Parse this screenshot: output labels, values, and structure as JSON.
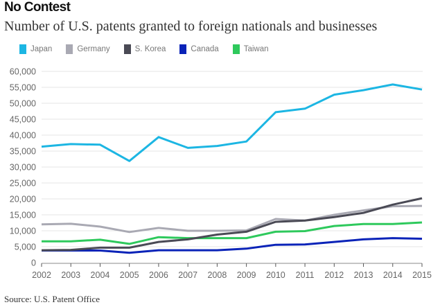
{
  "header": {
    "title": "No Contest",
    "subtitle": "Number of U.S. patents granted to foreign nationals and businesses"
  },
  "footer": {
    "source": "Source: U.S. Patent Office"
  },
  "chart_data": {
    "type": "line",
    "title": "No Contest",
    "subtitle": "Number of U.S. patents granted to foreign nationals and businesses",
    "xlabel": "",
    "ylabel": "",
    "x": [
      "2002",
      "2003",
      "2004",
      "2005",
      "2006",
      "2007",
      "2008",
      "2009",
      "2010",
      "2011",
      "2012",
      "2013",
      "2014",
      "2015"
    ],
    "ylim": [
      0,
      60000
    ],
    "yticks": [
      0,
      5000,
      10000,
      15000,
      20000,
      25000,
      30000,
      35000,
      40000,
      45000,
      50000,
      55000,
      60000
    ],
    "ytick_labels": [
      "0",
      "5,000",
      "10,000",
      "15,000",
      "20,000",
      "25,000",
      "30,000",
      "35,000",
      "40,000",
      "45,000",
      "50,000",
      "55,000",
      "60,000"
    ],
    "grid": true,
    "legend_position": "top-left",
    "series": [
      {
        "name": "Japan",
        "color": "#1cb6e3",
        "values": [
          36400,
          37200,
          37000,
          31900,
          39400,
          36000,
          36600,
          38000,
          47200,
          48300,
          52700,
          54100,
          55900,
          54300
        ]
      },
      {
        "name": "Germany",
        "color": "#a9a9b3",
        "values": [
          12000,
          12200,
          11300,
          9600,
          10900,
          10000,
          10000,
          10100,
          13700,
          13200,
          15000,
          16400,
          17700,
          17800
        ]
      },
      {
        "name": "S. Korea",
        "color": "#4a4a55",
        "values": [
          3900,
          4000,
          4700,
          4700,
          6500,
          7300,
          8800,
          9700,
          12800,
          13200,
          14300,
          15600,
          18200,
          20200
        ]
      },
      {
        "name": "Canada",
        "color": "#0a23b8",
        "values": [
          3800,
          3800,
          3800,
          3100,
          3900,
          3900,
          3900,
          4400,
          5600,
          5700,
          6500,
          7300,
          7700,
          7500
        ]
      },
      {
        "name": "Taiwan",
        "color": "#2ec95c",
        "values": [
          6700,
          6700,
          7200,
          5900,
          8000,
          7700,
          7700,
          7700,
          9700,
          9900,
          11500,
          12100,
          12100,
          12600
        ]
      }
    ]
  }
}
